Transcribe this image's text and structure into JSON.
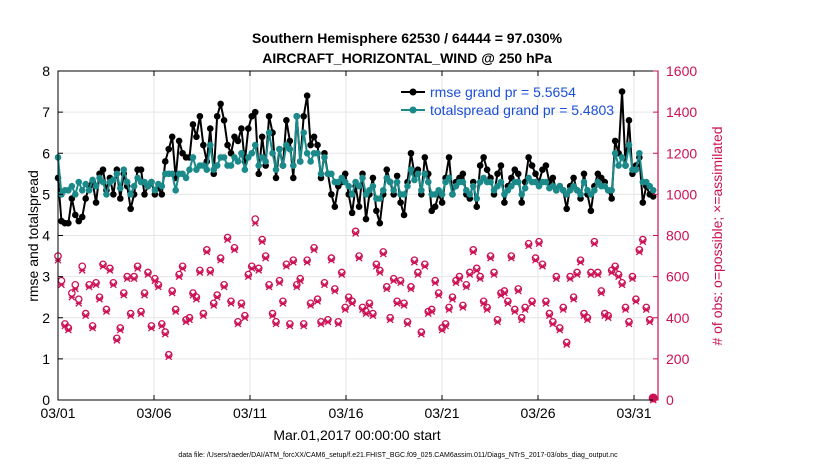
{
  "chart_data": {
    "type": "line",
    "title": "Southern Hemisphere 62530 / 64444 = 97.030%",
    "subtitle": "AIRCRAFT_HORIZONTAL_WIND @ 250 hPa",
    "xlabel": "Mar.01,2017 00:00:00 start",
    "ylabel_left": "rmse and totalspread",
    "ylabel_right": "# of obs: o=possible; ×=assimilated",
    "footnote": "data file: /Users/raeder/DAI/ATM_forcXX/CAM6_setup/f.e21.FHIST_BGC.f09_025.CAM6assim.011/Diags_NTrS_2017-03/obs_diag_output.nc",
    "xlim": [
      0,
      31.25
    ],
    "ylim_left": [
      0,
      8
    ],
    "ylim_right": [
      0,
      1600
    ],
    "x_ticks": [
      0,
      5,
      10,
      15,
      20,
      25,
      30
    ],
    "x_tick_labels": [
      "03/01",
      "03/06",
      "03/11",
      "03/16",
      "03/21",
      "03/26",
      "03/31"
    ],
    "y_left_ticks": [
      0,
      1,
      2,
      3,
      4,
      5,
      6,
      7,
      8
    ],
    "y_left_tick_labels": [
      "0",
      "1",
      "2",
      "3",
      "4",
      "5",
      "6",
      "7",
      "8"
    ],
    "y_right_ticks": [
      0,
      200,
      400,
      600,
      800,
      1000,
      1200,
      1400,
      1600
    ],
    "y_right_tick_labels": [
      "0",
      "200",
      "400",
      "600",
      "800",
      "1000",
      "1200",
      "1400",
      "1600"
    ],
    "grid": true,
    "legend_position": "top-right",
    "colors": {
      "rmse": "#000000",
      "totalspread": "#1a8a8a",
      "obs": "#cc1155",
      "legend_text": "#1a4fd6",
      "right_axis": "#cc1155",
      "grid": "#e6e6e6"
    },
    "series": [
      {
        "name": "rmse grand pr = 5.5654",
        "axis": "left",
        "values": [
          5.4,
          4.35,
          4.3,
          4.3,
          4.9,
          4.5,
          4.35,
          4.45,
          4.9,
          5.2,
          5.3,
          4.8,
          5.5,
          5.6,
          5.1,
          5.4,
          5.0,
          5.6,
          4.9,
          5.5,
          5.2,
          4.65,
          5.0,
          5.6,
          5.6,
          5.0,
          5.2,
          5.3,
          5.0,
          5.15,
          5.0,
          5.8,
          6.1,
          6.4,
          5.4,
          6.3,
          6.0,
          5.9,
          5.9,
          6.7,
          6.4,
          6.9,
          6.2,
          5.8,
          6.6,
          5.5,
          6.9,
          7.2,
          6.8,
          6.2,
          6.0,
          6.4,
          6.3,
          6.6,
          5.8,
          6.6,
          6.9,
          7.0,
          5.5,
          6.4,
          5.7,
          6.9,
          6.5,
          5.4,
          6.1,
          5.7,
          6.8,
          6.3,
          5.4,
          6.9,
          5.8,
          6.9,
          7.4,
          6.2,
          6.4,
          6.2,
          5.4,
          6.0,
          5.5,
          5.0,
          4.7,
          5.2,
          5.3,
          5.5,
          5.0,
          4.55,
          5.2,
          4.7,
          5.5,
          4.4,
          5.0,
          5.4,
          4.6,
          4.3,
          5.0,
          5.6,
          5.3,
          5.0,
          5.45,
          4.8,
          4.5,
          5.3,
          6.0,
          5.5,
          5.6,
          5.0,
          5.9,
          5.5,
          4.6,
          4.7,
          5.0,
          4.8,
          5.4,
          5.9,
          5.0,
          5.3,
          5.4,
          5.5,
          5.0,
          4.9,
          5.3,
          4.7,
          5.7,
          5.9,
          5.6,
          5.4,
          5.0,
          5.5,
          5.7,
          4.8,
          5.2,
          5.4,
          5.6,
          5.5,
          4.8,
          5.3,
          5.9,
          5.7,
          5.5,
          5.3,
          5.6,
          5.7,
          5.3,
          5.4,
          5.1,
          5.2,
          5.1,
          4.65,
          5.2,
          5.4,
          5.1,
          4.9,
          5.5,
          5.0,
          4.6,
          5.2,
          5.5,
          5.4,
          5.3,
          5.1,
          4.9,
          6.3,
          6.0,
          7.5,
          5.7,
          6.8,
          5.5,
          5.7,
          5.9,
          4.8,
          5.2,
          5.0,
          4.95
        ],
        "x": "evenly spaced from 0.0 to 31.0 (every 6 hours)"
      },
      {
        "name": "totalspread grand pr = 5.4803",
        "axis": "left",
        "values": [
          5.9,
          5.0,
          5.1,
          5.1,
          5.2,
          5.0,
          5.3,
          5.1,
          5.25,
          5.1,
          5.35,
          5.2,
          5.4,
          5.3,
          5.0,
          5.3,
          5.35,
          5.5,
          5.15,
          5.6,
          5.3,
          5.0,
          5.2,
          5.4,
          5.3,
          5.3,
          5.2,
          5.3,
          5.1,
          5.25,
          5.2,
          5.5,
          5.5,
          5.5,
          5.1,
          5.5,
          5.5,
          5.4,
          5.6,
          5.9,
          5.6,
          5.7,
          5.7,
          5.6,
          6.2,
          5.6,
          5.7,
          5.9,
          5.9,
          5.7,
          5.7,
          5.9,
          5.8,
          6.0,
          5.6,
          5.9,
          6.0,
          6.2,
          5.7,
          5.9,
          5.8,
          6.5,
          6.0,
          5.6,
          6.1,
          5.7,
          6.2,
          6.1,
          5.7,
          6.9,
          5.8,
          6.5,
          6.0,
          5.8,
          6.0,
          6.0,
          5.5,
          5.9,
          5.5,
          5.5,
          5.3,
          5.3,
          5.4,
          5.3,
          5.2,
          5.0,
          5.3,
          5.2,
          5.4,
          5.0,
          5.1,
          5.2,
          4.9,
          4.9,
          5.1,
          5.4,
          5.3,
          5.1,
          5.3,
          5.0,
          5.0,
          5.2,
          5.6,
          5.35,
          5.5,
          5.1,
          5.5,
          5.3,
          5.0,
          5.0,
          5.1,
          5.0,
          5.3,
          5.4,
          5.0,
          5.2,
          5.3,
          5.3,
          5.1,
          5.0,
          5.2,
          4.9,
          5.3,
          5.4,
          5.3,
          5.3,
          5.1,
          5.2,
          5.3,
          5.0,
          5.1,
          5.2,
          5.3,
          5.3,
          5.0,
          5.15,
          5.4,
          5.3,
          5.3,
          5.2,
          5.3,
          5.3,
          5.15,
          5.2,
          5.1,
          5.2,
          5.1,
          5.0,
          5.1,
          5.2,
          5.1,
          5.0,
          5.3,
          5.1,
          5.0,
          5.1,
          5.3,
          5.2,
          5.2,
          5.1,
          5.1,
          6.0,
          5.7,
          5.9,
          5.7,
          6.2,
          5.6,
          5.6,
          6.0,
          5.3,
          5.3,
          5.2,
          5.1
        ]
      }
    ],
    "obs_possible": [
      700,
      580,
      370,
      350,
      520,
      560,
      490,
      650,
      420,
      560,
      360,
      570,
      500,
      660,
      440,
      640,
      570,
      300,
      350,
      520,
      600,
      420,
      600,
      650,
      430,
      520,
      620,
      360,
      590,
      560,
      370,
      330,
      220,
      530,
      440,
      610,
      650,
      390,
      400,
      520,
      500,
      630,
      420,
      730,
      630,
      470,
      510,
      690,
      560,
      790,
      480,
      740,
      380,
      470,
      410,
      610,
      650,
      880,
      640,
      780,
      700,
      560,
      420,
      380,
      580,
      480,
      660,
      370,
      680,
      560,
      590,
      370,
      680,
      470,
      740,
      490,
      380,
      570,
      390,
      690,
      540,
      380,
      620,
      450,
      500,
      480,
      820,
      700,
      450,
      430,
      470,
      420,
      660,
      630,
      720,
      550,
      400,
      590,
      480,
      580,
      470,
      380,
      550,
      680,
      620,
      330,
      660,
      430,
      440,
      580,
      520,
      350,
      370,
      450,
      500,
      580,
      600,
      460,
      560,
      620,
      730,
      640,
      600,
      480,
      450,
      700,
      620,
      390,
      520,
      530,
      480,
      700,
      440,
      540,
      400,
      450,
      760,
      480,
      690,
      770,
      660,
      480,
      420,
      380,
      600,
      350,
      450,
      280,
      600,
      500,
      620,
      680,
      420,
      400,
      620,
      770,
      620,
      530,
      420,
      410,
      630,
      650,
      610,
      570,
      450,
      380,
      600,
      490,
      730,
      780,
      450,
      390,
      10
    ],
    "obs_assimilated": [
      680,
      560,
      360,
      340,
      500,
      540,
      470,
      630,
      410,
      550,
      350,
      560,
      490,
      650,
      430,
      630,
      560,
      290,
      340,
      510,
      590,
      410,
      590,
      640,
      420,
      510,
      610,
      350,
      580,
      550,
      360,
      320,
      210,
      520,
      430,
      600,
      640,
      380,
      390,
      510,
      490,
      620,
      410,
      720,
      620,
      460,
      500,
      680,
      550,
      780,
      470,
      730,
      370,
      460,
      400,
      600,
      640,
      860,
      630,
      770,
      690,
      550,
      410,
      370,
      570,
      470,
      650,
      360,
      670,
      550,
      580,
      360,
      670,
      460,
      730,
      480,
      370,
      560,
      380,
      680,
      530,
      370,
      610,
      440,
      490,
      470,
      810,
      690,
      440,
      420,
      460,
      410,
      650,
      620,
      710,
      540,
      390,
      580,
      470,
      570,
      460,
      370,
      540,
      670,
      610,
      320,
      650,
      420,
      430,
      570,
      510,
      340,
      360,
      440,
      490,
      570,
      590,
      450,
      550,
      610,
      720,
      630,
      590,
      470,
      440,
      690,
      610,
      380,
      510,
      520,
      470,
      690,
      430,
      530,
      390,
      440,
      750,
      470,
      680,
      760,
      650,
      470,
      410,
      370,
      590,
      340,
      440,
      270,
      590,
      490,
      610,
      670,
      410,
      390,
      610,
      760,
      610,
      520,
      410,
      400,
      620,
      640,
      600,
      560,
      440,
      370,
      590,
      480,
      720,
      770,
      440,
      380,
      0
    ]
  }
}
